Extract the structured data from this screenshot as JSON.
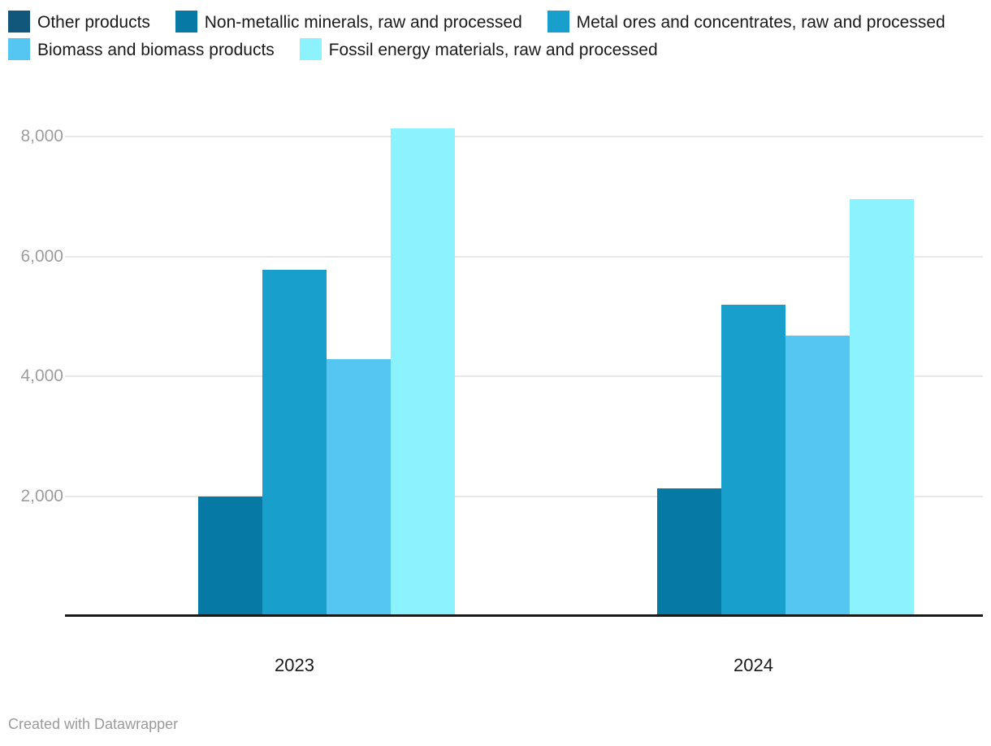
{
  "legend": {
    "items": [
      {
        "label": "Other products",
        "color": "#11567b"
      },
      {
        "label": "Non-metallic minerals, raw and processed",
        "color": "#0679a5"
      },
      {
        "label": "Metal ores and concentrates, raw and processed",
        "color": "#189fcb"
      },
      {
        "label": "Biomass and biomass products",
        "color": "#55c6f2"
      },
      {
        "label": "Fossil energy materials, raw and processed",
        "color": "#8cf3fe"
      }
    ]
  },
  "chart_data": {
    "type": "bar",
    "categories": [
      "2023",
      "2024"
    ],
    "series": [
      {
        "name": "Other products",
        "color": "#11567b",
        "values": [
          0,
          0
        ]
      },
      {
        "name": "Non-metallic minerals, raw and processed",
        "color": "#0679a5",
        "values": [
          1990,
          2130
        ]
      },
      {
        "name": "Metal ores and concentrates, raw and processed",
        "color": "#189fcb",
        "values": [
          5770,
          5190
        ]
      },
      {
        "name": "Biomass and biomass products",
        "color": "#55c6f2",
        "values": [
          4280,
          4680
        ]
      },
      {
        "name": "Fossil energy materials, raw and processed",
        "color": "#8cf3fe",
        "values": [
          8140,
          6960
        ]
      }
    ],
    "yticks": [
      {
        "value": 2000,
        "label": "2,000"
      },
      {
        "value": 4000,
        "label": "4,000"
      },
      {
        "value": 6000,
        "label": "6,000"
      },
      {
        "value": 8000,
        "label": "8,000"
      }
    ],
    "ylim": [
      0,
      8760
    ],
    "grid": true,
    "legend_position": "top"
  },
  "footer": {
    "credit": "Created with Datawrapper"
  },
  "colors": {
    "background": "#ffffff",
    "axis_line": "#1a1a1a",
    "gridline": "#e8e8e8",
    "tick_label": "#9d9d9d",
    "text": "#1a1a1a",
    "footer_text": "#9b9b9b"
  }
}
